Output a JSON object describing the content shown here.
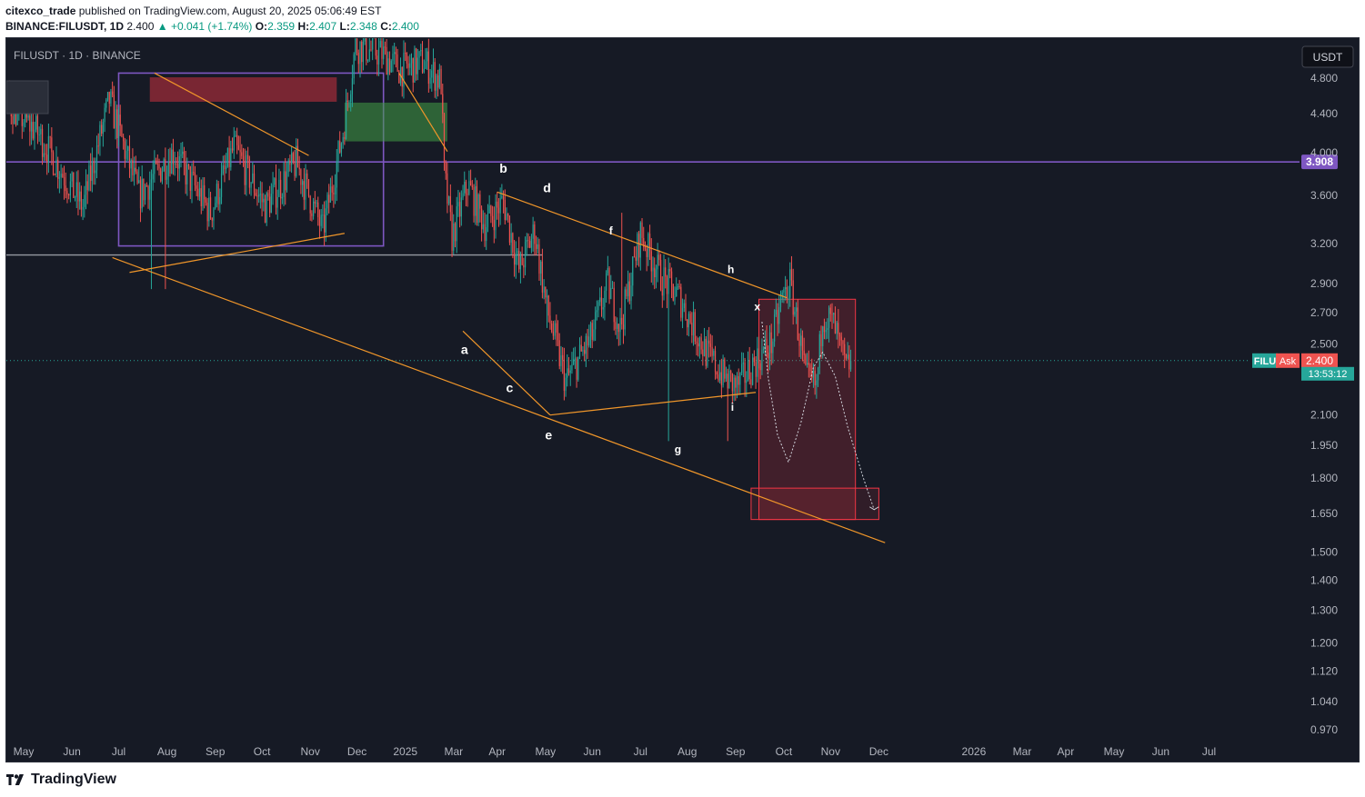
{
  "header": {
    "author": "citexco_trade",
    "published_text": "published on TradingView.com, August 20, 2025 05:06:49 EST",
    "symbol_line": "BINANCE:FILUSDT, 1D",
    "price": "2.400",
    "change": "+0.041 (+1.74%)",
    "o_label": "O:",
    "o_value": "2.359",
    "h_label": "H:",
    "h_value": "2.407",
    "l_label": "L:",
    "l_value": "2.348",
    "c_label": "C:",
    "c_value": "2.400"
  },
  "chart_data": {
    "type": "candlestick",
    "title": "FILUSDT · 1D · BINANCE",
    "currency_label": "USDT",
    "y_scale": "log",
    "y_ticks": [
      "4.800",
      "4.400",
      "4.000",
      "3.600",
      "3.200",
      "2.900",
      "2.700",
      "2.500",
      "2.100",
      "1.950",
      "1.800",
      "1.650",
      "1.500",
      "1.400",
      "1.300",
      "1.200",
      "1.120",
      "1.040",
      "0.970"
    ],
    "x_ticks": [
      "May",
      "Jun",
      "Jul",
      "Aug",
      "Sep",
      "Oct",
      "Nov",
      "Dec",
      "2025",
      "Mar",
      "Apr",
      "May",
      "Jun",
      "Jul",
      "Aug",
      "Sep",
      "Oct",
      "Nov",
      "Dec",
      "2026",
      "Mar",
      "Apr",
      "May",
      "Jun",
      "Jul"
    ],
    "horizontal_lines": [
      {
        "price": 3.908,
        "color": "#7e57c2",
        "label": "3.908"
      },
      {
        "price": 3.11,
        "color": "#9598a1"
      }
    ],
    "current_price": {
      "value": "2.400",
      "symbol_tag": "FILU",
      "ask_tag": "Ask",
      "countdown": "13:53:12"
    },
    "wave_labels": [
      {
        "text": "a",
        "date": "2025-02-08",
        "price": 2.46
      },
      {
        "text": "b",
        "date": "2025-03-05",
        "price": 3.84
      },
      {
        "text": "c",
        "date": "2025-03-09",
        "price": 2.24
      },
      {
        "text": "d",
        "date": "2025-04-02",
        "price": 3.66
      },
      {
        "text": "e",
        "date": "2025-04-03",
        "price": 1.995
      },
      {
        "text": "f",
        "date": "2025-05-13",
        "price": 3.3
      },
      {
        "text": "g",
        "date": "2025-06-25",
        "price": 1.93
      },
      {
        "text": "h",
        "date": "2025-07-29",
        "price": 3.0
      },
      {
        "text": "i",
        "date": "2025-07-30",
        "price": 2.14
      },
      {
        "text": "x",
        "date": "2025-08-15",
        "price": 2.74
      }
    ],
    "colors": {
      "up": "#26a69a",
      "down": "#ef5350",
      "trendline": "#f0962a",
      "purple": "#7e57c2",
      "projection_zone": "#f23645"
    }
  },
  "footer": {
    "brand": "TradingView"
  }
}
